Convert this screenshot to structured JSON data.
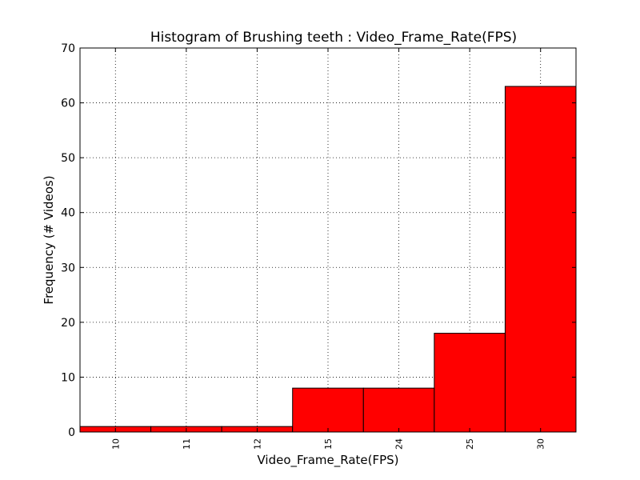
{
  "chart_data": {
    "type": "bar",
    "title": "Histogram of Brushing teeth : Video_Frame_Rate(FPS)",
    "xlabel": "Video_Frame_Rate(FPS)",
    "ylabel": "Frequency (# Videos)",
    "categories": [
      "10",
      "11",
      "12",
      "15",
      "24",
      "25",
      "30"
    ],
    "values": [
      1,
      1,
      1,
      8,
      8,
      18,
      63
    ],
    "ylim": [
      0,
      70
    ],
    "yticks": [
      0,
      10,
      20,
      30,
      40,
      50,
      60,
      70
    ],
    "grid": true,
    "bar_color": "#ff0000",
    "edge_color": "#000000"
  }
}
